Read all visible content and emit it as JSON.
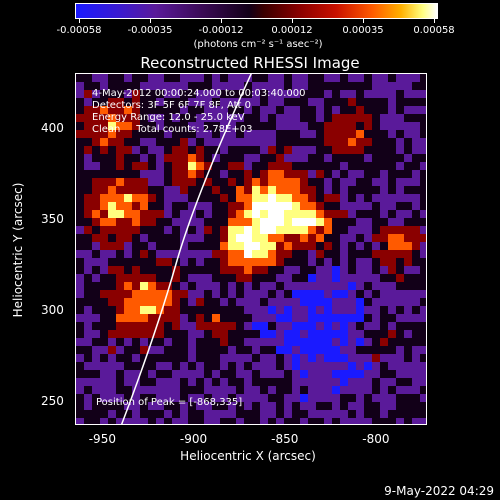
{
  "colorbar": {
    "tick_labels": [
      "-0.00058",
      "-0.00035",
      "-0.00012",
      "0.00012",
      "0.00035",
      "0.00058"
    ],
    "units_label": "(photons cm⁻² s⁻¹ asec⁻²)",
    "colors": [
      "#1a1aff",
      "#5a1a9a",
      "#120018",
      "#8a0000",
      "#ff5a00",
      "#ffff80",
      "#ffffff"
    ]
  },
  "plot": {
    "title": "Reconstructed RHESSI Image",
    "info_lines": [
      "4-May-2012 00:00:24.000 to 00:03:40.000",
      "Detectors: 3F 5F 6F 7F 8F, Att 0",
      "Energy Range: 12.0 - 25.0 keV",
      "Clean     Total counts: 2.78E+03"
    ],
    "peak_label": "Position of Peak = [-868,335]",
    "x_axis": {
      "title": "Heliocentric X (arcsec)",
      "tick_labels": [
        "-950",
        "-900",
        "-850",
        "-800"
      ],
      "range": [
        -965,
        -772
      ]
    },
    "y_axis": {
      "title": "Heliocentric Y (arcsec)",
      "tick_labels": [
        "250",
        "300",
        "350",
        "400"
      ],
      "range": [
        237,
        430
      ]
    }
  },
  "footer": {
    "date": "9-May-2022 04:29"
  }
}
